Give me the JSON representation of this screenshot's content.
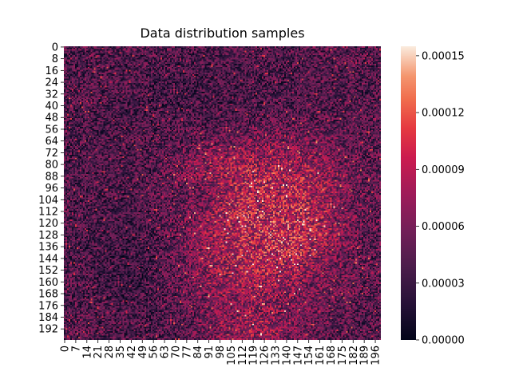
{
  "chart_data": {
    "type": "heatmap",
    "title": "Data distribution samples",
    "xlabel": "",
    "ylabel": "",
    "rows": 200,
    "cols": 200,
    "x_ticks": [
      "0",
      "7",
      "14",
      "21",
      "28",
      "35",
      "42",
      "49",
      "56",
      "63",
      "70",
      "77",
      "84",
      "91",
      "98",
      "105",
      "112",
      "119",
      "126",
      "133",
      "140",
      "147",
      "154",
      "161",
      "168",
      "175",
      "182",
      "189",
      "196"
    ],
    "x_tick_values": [
      0,
      7,
      14,
      21,
      28,
      35,
      42,
      49,
      56,
      63,
      70,
      77,
      84,
      91,
      98,
      105,
      112,
      119,
      126,
      133,
      140,
      147,
      154,
      161,
      168,
      175,
      182,
      189,
      196
    ],
    "y_ticks": [
      "0",
      "8",
      "16",
      "24",
      "32",
      "40",
      "48",
      "56",
      "64",
      "72",
      "80",
      "88",
      "96",
      "104",
      "112",
      "120",
      "128",
      "136",
      "144",
      "152",
      "160",
      "168",
      "176",
      "184",
      "192"
    ],
    "y_tick_values": [
      0,
      8,
      16,
      24,
      32,
      40,
      48,
      56,
      64,
      72,
      80,
      88,
      96,
      104,
      112,
      120,
      128,
      136,
      144,
      152,
      160,
      168,
      176,
      184,
      192
    ],
    "colorbar": {
      "range": [
        0,
        0.000155
      ],
      "ticks": [
        "0.00000",
        "0.00003",
        "0.00006",
        "0.00009",
        "0.00012",
        "0.00015"
      ],
      "tick_values": [
        0,
        3e-05,
        6e-05,
        9e-05,
        0.00012,
        0.00015
      ],
      "colormap": "rocket"
    },
    "description_of_values": "Noisy sample of a face-shaped intensity field; bright region (about 0.00006–0.00015) forms a face in the center, darker background around 0.00002–0.00004."
  }
}
